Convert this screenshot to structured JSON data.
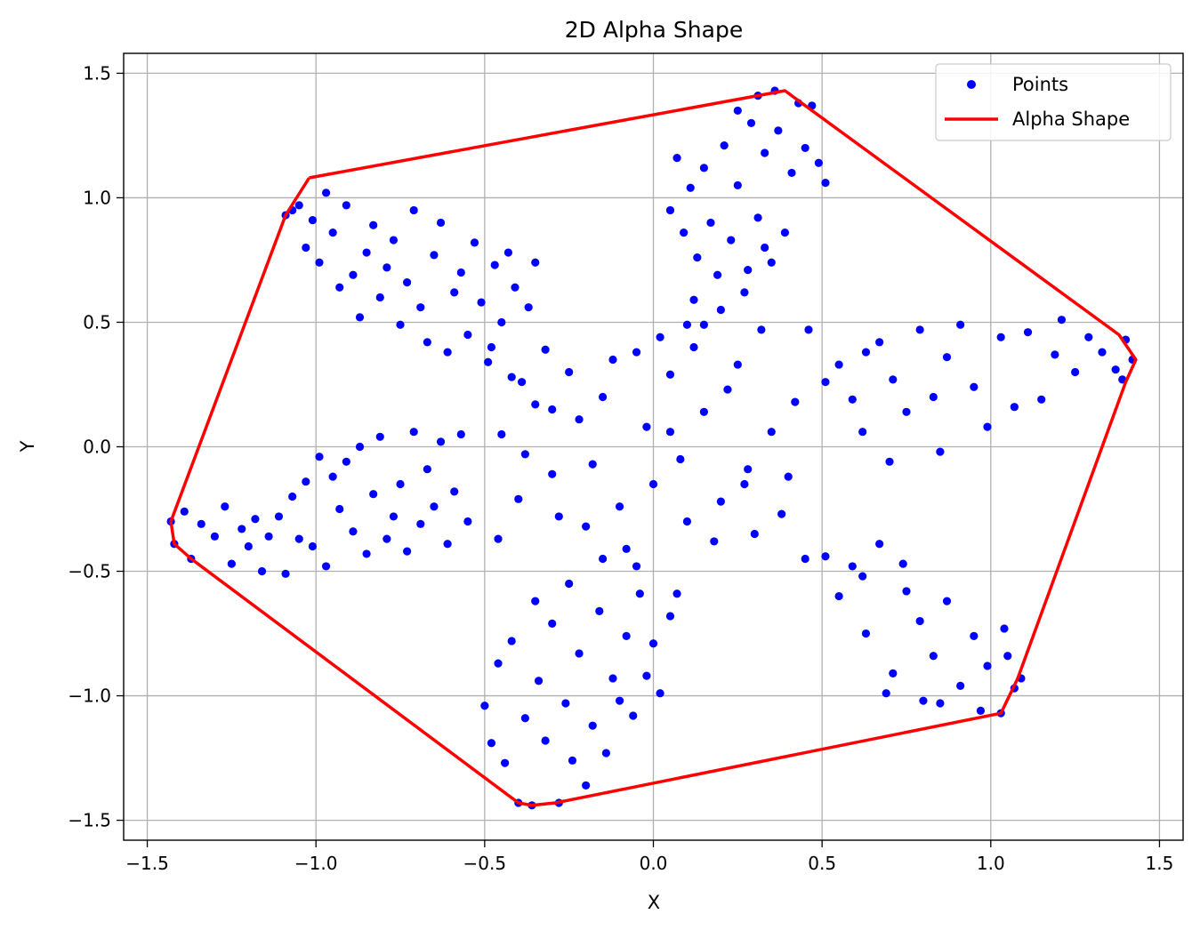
{
  "chart_data": {
    "type": "scatter",
    "title": "2D Alpha Shape",
    "xlabel": "X",
    "ylabel": "Y",
    "xlim": [
      -1.57,
      1.57
    ],
    "ylim": [
      -1.58,
      1.58
    ],
    "grid": true,
    "legend_position": "top-right",
    "x_ticks": [
      -1.5,
      -1.0,
      -0.5,
      0.0,
      0.5,
      1.0,
      1.5
    ],
    "x_tick_labels": [
      "−1.5",
      "−1.0",
      "−0.5",
      "0.0",
      "0.5",
      "1.0",
      "1.5"
    ],
    "y_ticks": [
      -1.5,
      -1.0,
      -0.5,
      0.0,
      0.5,
      1.0,
      1.5
    ],
    "y_tick_labels": [
      "−1.5",
      "−1.0",
      "−0.5",
      "0.0",
      "0.5",
      "1.0",
      "1.5"
    ],
    "series": [
      {
        "name": "Points",
        "kind": "scatter",
        "color": "#0000ff",
        "points": [
          [
            -1.43,
            -0.3
          ],
          [
            -1.42,
            -0.39
          ],
          [
            -1.39,
            -0.26
          ],
          [
            -1.37,
            -0.45
          ],
          [
            -1.34,
            -0.31
          ],
          [
            -1.3,
            -0.36
          ],
          [
            -1.27,
            -0.24
          ],
          [
            -1.25,
            -0.47
          ],
          [
            -1.22,
            -0.33
          ],
          [
            -1.2,
            -0.4
          ],
          [
            -1.18,
            -0.29
          ],
          [
            -1.16,
            -0.5
          ],
          [
            -1.14,
            -0.36
          ],
          [
            -1.11,
            -0.28
          ],
          [
            -1.09,
            -0.51
          ],
          [
            -1.07,
            -0.2
          ],
          [
            -1.05,
            -0.37
          ],
          [
            -1.03,
            -0.14
          ],
          [
            -1.01,
            -0.4
          ],
          [
            -0.99,
            -0.04
          ],
          [
            -0.97,
            -0.48
          ],
          [
            -0.95,
            -0.12
          ],
          [
            -0.93,
            -0.25
          ],
          [
            -0.91,
            -0.06
          ],
          [
            -0.89,
            -0.34
          ],
          [
            -0.87,
            0.0
          ],
          [
            -0.85,
            -0.43
          ],
          [
            -0.83,
            -0.19
          ],
          [
            -0.81,
            0.04
          ],
          [
            -0.79,
            -0.37
          ],
          [
            -0.77,
            -0.28
          ],
          [
            -0.75,
            -0.15
          ],
          [
            -0.73,
            -0.42
          ],
          [
            -0.71,
            0.06
          ],
          [
            -0.69,
            -0.31
          ],
          [
            -0.67,
            -0.09
          ],
          [
            -0.65,
            -0.24
          ],
          [
            -0.63,
            0.02
          ],
          [
            -0.61,
            -0.39
          ],
          [
            -0.59,
            -0.18
          ],
          [
            -0.57,
            0.05
          ],
          [
            -0.55,
            -0.3
          ],
          [
            -1.09,
            0.93
          ],
          [
            -1.07,
            0.95
          ],
          [
            -1.05,
            0.97
          ],
          [
            -1.03,
            0.8
          ],
          [
            -1.01,
            0.91
          ],
          [
            -0.99,
            0.74
          ],
          [
            -0.97,
            1.02
          ],
          [
            -0.95,
            0.86
          ],
          [
            -0.93,
            0.64
          ],
          [
            -0.91,
            0.97
          ],
          [
            -0.89,
            0.69
          ],
          [
            -0.87,
            0.52
          ],
          [
            -0.85,
            0.78
          ],
          [
            -0.83,
            0.89
          ],
          [
            -0.81,
            0.6
          ],
          [
            -0.79,
            0.72
          ],
          [
            -0.77,
            0.83
          ],
          [
            -0.75,
            0.49
          ],
          [
            -0.73,
            0.66
          ],
          [
            -0.71,
            0.95
          ],
          [
            -0.69,
            0.56
          ],
          [
            -0.67,
            0.42
          ],
          [
            -0.65,
            0.77
          ],
          [
            -0.63,
            0.9
          ],
          [
            -0.61,
            0.38
          ],
          [
            -0.59,
            0.62
          ],
          [
            -0.57,
            0.7
          ],
          [
            -0.55,
            0.45
          ],
          [
            -0.53,
            0.82
          ],
          [
            -0.51,
            0.58
          ],
          [
            -0.49,
            0.34
          ],
          [
            -0.47,
            0.73
          ],
          [
            -0.45,
            0.5
          ],
          [
            -0.43,
            0.78
          ],
          [
            -0.41,
            0.64
          ],
          [
            -0.39,
            0.26
          ],
          [
            -0.37,
            0.56
          ],
          [
            -0.35,
            0.74
          ],
          [
            0.05,
            0.95
          ],
          [
            0.07,
            1.16
          ],
          [
            0.09,
            0.86
          ],
          [
            0.11,
            1.04
          ],
          [
            0.13,
            0.76
          ],
          [
            0.15,
            1.12
          ],
          [
            0.17,
            0.9
          ],
          [
            0.19,
            0.69
          ],
          [
            0.21,
            1.21
          ],
          [
            0.23,
            0.83
          ],
          [
            0.25,
            1.05
          ],
          [
            0.27,
            0.62
          ],
          [
            0.29,
            1.3
          ],
          [
            0.31,
            0.92
          ],
          [
            0.33,
            1.18
          ],
          [
            0.35,
            0.74
          ],
          [
            0.37,
            1.27
          ],
          [
            0.39,
            0.86
          ],
          [
            0.41,
            1.1
          ],
          [
            0.43,
            1.38
          ],
          [
            0.45,
            1.2
          ],
          [
            0.47,
            1.37
          ],
          [
            0.49,
            1.14
          ],
          [
            0.51,
            1.06
          ],
          [
            0.36,
            1.43
          ],
          [
            0.31,
            1.41
          ],
          [
            0.25,
            1.35
          ],
          [
            0.12,
            0.59
          ],
          [
            0.15,
            0.49
          ],
          [
            0.2,
            0.55
          ],
          [
            0.28,
            0.71
          ],
          [
            0.33,
            0.8
          ],
          [
            0.51,
            0.26
          ],
          [
            0.55,
            0.33
          ],
          [
            0.59,
            0.19
          ],
          [
            0.63,
            0.38
          ],
          [
            0.67,
            0.42
          ],
          [
            0.71,
            0.27
          ],
          [
            0.75,
            0.14
          ],
          [
            0.79,
            0.47
          ],
          [
            0.83,
            0.2
          ],
          [
            0.87,
            0.36
          ],
          [
            0.91,
            0.49
          ],
          [
            0.95,
            0.24
          ],
          [
            0.99,
            0.08
          ],
          [
            1.03,
            0.44
          ],
          [
            1.07,
            0.16
          ],
          [
            1.11,
            0.46
          ],
          [
            1.15,
            0.19
          ],
          [
            1.19,
            0.37
          ],
          [
            1.21,
            0.51
          ],
          [
            1.25,
            0.3
          ],
          [
            1.29,
            0.44
          ],
          [
            1.33,
            0.38
          ],
          [
            1.37,
            0.31
          ],
          [
            1.4,
            0.43
          ],
          [
            1.42,
            0.35
          ],
          [
            1.39,
            0.27
          ],
          [
            0.85,
            -0.02
          ],
          [
            0.7,
            -0.06
          ],
          [
            0.62,
            0.06
          ],
          [
            0.51,
            -0.44
          ],
          [
            0.55,
            -0.6
          ],
          [
            0.59,
            -0.48
          ],
          [
            0.63,
            -0.75
          ],
          [
            0.67,
            -0.39
          ],
          [
            0.71,
            -0.91
          ],
          [
            0.75,
            -0.58
          ],
          [
            0.79,
            -0.7
          ],
          [
            0.83,
            -0.84
          ],
          [
            0.87,
            -0.62
          ],
          [
            0.91,
            -0.96
          ],
          [
            0.95,
            -0.76
          ],
          [
            0.97,
            -1.06
          ],
          [
            0.99,
            -0.88
          ],
          [
            1.03,
            -1.07
          ],
          [
            1.05,
            -0.84
          ],
          [
            1.07,
            -0.97
          ],
          [
            1.09,
            -0.93
          ],
          [
            1.04,
            -0.73
          ],
          [
            0.8,
            -1.02
          ],
          [
            0.69,
            -0.99
          ],
          [
            0.85,
            -1.03
          ],
          [
            0.62,
            -0.52
          ],
          [
            0.74,
            -0.47
          ],
          [
            -0.5,
            -1.04
          ],
          [
            -0.48,
            -1.19
          ],
          [
            -0.46,
            -0.87
          ],
          [
            -0.44,
            -1.27
          ],
          [
            -0.42,
            -0.78
          ],
          [
            -0.4,
            -1.43
          ],
          [
            -0.38,
            -1.09
          ],
          [
            -0.36,
            -1.44
          ],
          [
            -0.34,
            -0.94
          ],
          [
            -0.32,
            -1.18
          ],
          [
            -0.3,
            -0.71
          ],
          [
            -0.28,
            -1.43
          ],
          [
            -0.26,
            -1.03
          ],
          [
            -0.24,
            -1.26
          ],
          [
            -0.22,
            -0.83
          ],
          [
            -0.2,
            -1.36
          ],
          [
            -0.18,
            -1.12
          ],
          [
            -0.16,
            -0.66
          ],
          [
            -0.14,
            -1.23
          ],
          [
            -0.12,
            -0.93
          ],
          [
            -0.1,
            -1.02
          ],
          [
            -0.08,
            -0.76
          ],
          [
            -0.06,
            -1.08
          ],
          [
            -0.04,
            -0.59
          ],
          [
            -0.02,
            -0.92
          ],
          [
            0.0,
            -0.79
          ],
          [
            0.02,
            -0.99
          ],
          [
            0.05,
            -0.68
          ],
          [
            0.07,
            -0.59
          ],
          [
            -0.25,
            -0.55
          ],
          [
            -0.35,
            -0.62
          ],
          [
            -0.45,
            0.05
          ],
          [
            -0.4,
            -0.21
          ],
          [
            -0.35,
            0.17
          ],
          [
            -0.3,
            -0.11
          ],
          [
            -0.25,
            0.3
          ],
          [
            -0.2,
            -0.32
          ],
          [
            -0.15,
            0.2
          ],
          [
            -0.1,
            -0.24
          ],
          [
            -0.05,
            0.38
          ],
          [
            0.0,
            -0.15
          ],
          [
            0.05,
            0.29
          ],
          [
            0.1,
            -0.3
          ],
          [
            0.15,
            0.14
          ],
          [
            0.2,
            -0.22
          ],
          [
            0.25,
            0.33
          ],
          [
            0.3,
            -0.35
          ],
          [
            0.35,
            0.06
          ],
          [
            0.4,
            -0.12
          ],
          [
            -0.42,
            0.28
          ],
          [
            -0.38,
            -0.03
          ],
          [
            -0.32,
            0.39
          ],
          [
            -0.28,
            -0.28
          ],
          [
            -0.22,
            0.11
          ],
          [
            -0.18,
            -0.07
          ],
          [
            -0.12,
            0.35
          ],
          [
            -0.08,
            -0.41
          ],
          [
            -0.02,
            0.08
          ],
          [
            0.02,
            0.44
          ],
          [
            0.08,
            -0.05
          ],
          [
            0.12,
            0.4
          ],
          [
            0.18,
            -0.38
          ],
          [
            0.22,
            0.23
          ],
          [
            0.28,
            -0.09
          ],
          [
            0.32,
            0.47
          ],
          [
            0.38,
            -0.27
          ],
          [
            0.42,
            0.18
          ],
          [
            -0.48,
            0.4
          ],
          [
            -0.46,
            -0.37
          ],
          [
            0.45,
            -0.45
          ],
          [
            0.46,
            0.47
          ],
          [
            -0.15,
            -0.45
          ],
          [
            0.1,
            0.49
          ],
          [
            -0.05,
            -0.48
          ],
          [
            0.05,
            0.06
          ],
          [
            -0.3,
            0.15
          ],
          [
            0.27,
            -0.15
          ]
        ]
      },
      {
        "name": "Alpha Shape",
        "kind": "line",
        "color": "#ff0000",
        "points": [
          [
            -1.02,
            1.08
          ],
          [
            0.39,
            1.43
          ],
          [
            0.45,
            1.37
          ],
          [
            1.38,
            0.45
          ],
          [
            1.41,
            0.39
          ],
          [
            1.43,
            0.35
          ],
          [
            1.4,
            0.26
          ],
          [
            1.08,
            -0.93
          ],
          [
            1.03,
            -1.07
          ],
          [
            -0.29,
            -1.43
          ],
          [
            -0.36,
            -1.44
          ],
          [
            -0.4,
            -1.43
          ],
          [
            -1.37,
            -0.45
          ],
          [
            -1.42,
            -0.39
          ],
          [
            -1.43,
            -0.3
          ],
          [
            -1.09,
            0.93
          ],
          [
            -1.02,
            1.08
          ]
        ]
      }
    ]
  }
}
